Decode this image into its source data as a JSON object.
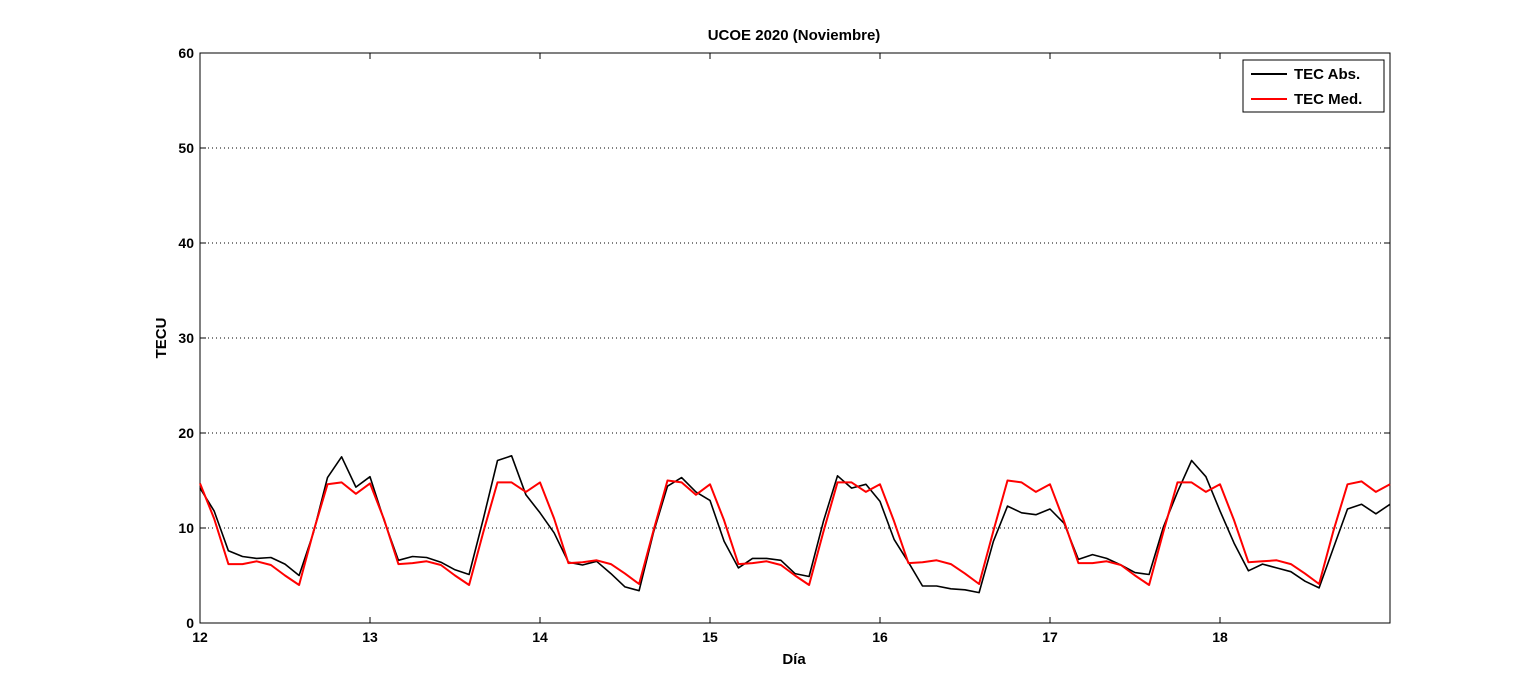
{
  "chart_data": {
    "type": "line",
    "title": "UCOE 2020 (Noviembre)",
    "xlabel": "Día",
    "ylabel": "TECU",
    "xlim": [
      12,
      19
    ],
    "ylim": [
      0,
      60
    ],
    "x_ticks": [
      12,
      13,
      14,
      15,
      16,
      17,
      18
    ],
    "y_ticks": [
      0,
      10,
      20,
      30,
      40,
      50,
      60
    ],
    "grid": "horizontal dotted",
    "legend_position": "top-right",
    "colors": {
      "TEC Abs.": "#000000",
      "TEC Med.": "#ff0000"
    },
    "series": [
      {
        "name": "TEC Abs.",
        "x": [
          12.0,
          12.083,
          12.167,
          12.25,
          12.333,
          12.417,
          12.5,
          12.583,
          12.667,
          12.75,
          12.833,
          12.917,
          13.0,
          13.083,
          13.167,
          13.25,
          13.333,
          13.417,
          13.5,
          13.583,
          13.667,
          13.75,
          13.833,
          13.917,
          14.0,
          14.083,
          14.167,
          14.25,
          14.333,
          14.417,
          14.5,
          14.583,
          14.667,
          14.75,
          14.833,
          14.917,
          15.0,
          15.083,
          15.167,
          15.25,
          15.333,
          15.417,
          15.5,
          15.583,
          15.667,
          15.75,
          15.833,
          15.917,
          16.0,
          16.083,
          16.167,
          16.25,
          16.333,
          16.417,
          16.5,
          16.583,
          16.667,
          16.75,
          16.833,
          16.917,
          17.0,
          17.083,
          17.167,
          17.25,
          17.333,
          17.417,
          17.5,
          17.583,
          17.667,
          17.75,
          17.833,
          17.917,
          18.0,
          18.083,
          18.167,
          18.25,
          18.333,
          18.417,
          18.5,
          18.583,
          18.667,
          18.75,
          18.833,
          18.917,
          19.0
        ],
        "y": [
          14.2,
          11.8,
          7.6,
          7.0,
          6.8,
          6.9,
          6.2,
          5.0,
          9.5,
          15.3,
          17.5,
          14.3,
          15.4,
          10.8,
          6.6,
          7.0,
          6.9,
          6.4,
          5.6,
          5.1,
          11.0,
          17.1,
          17.6,
          13.5,
          11.6,
          9.5,
          6.4,
          6.1,
          6.5,
          5.2,
          3.8,
          3.4,
          9.5,
          14.4,
          15.3,
          13.8,
          12.9,
          8.6,
          5.8,
          6.8,
          6.8,
          6.6,
          5.2,
          4.9,
          10.7,
          15.5,
          14.2,
          14.6,
          12.8,
          8.8,
          6.4,
          3.9,
          3.9,
          3.6,
          3.5,
          3.2,
          8.6,
          12.3,
          11.6,
          11.4,
          12.0,
          10.5,
          6.7,
          7.2,
          6.8,
          6.1,
          5.3,
          5.1,
          10.1,
          13.8,
          17.1,
          15.4,
          11.8,
          8.4,
          5.5,
          6.2,
          5.8,
          5.4,
          4.4,
          3.7,
          7.9,
          12.0,
          12.5,
          11.5,
          12.5
        ]
      },
      {
        "name": "TEC Med.",
        "x": [
          12.0,
          12.083,
          12.167,
          12.25,
          12.333,
          12.417,
          12.5,
          12.583,
          12.667,
          12.75,
          12.833,
          12.917,
          13.0,
          13.083,
          13.167,
          13.25,
          13.333,
          13.417,
          13.5,
          13.583,
          13.667,
          13.75,
          13.833,
          13.917,
          14.0,
          14.083,
          14.167,
          14.25,
          14.333,
          14.417,
          14.5,
          14.583,
          14.667,
          14.75,
          14.833,
          14.917,
          15.0,
          15.083,
          15.167,
          15.25,
          15.333,
          15.417,
          15.5,
          15.583,
          15.667,
          15.75,
          15.833,
          15.917,
          16.0,
          16.083,
          16.167,
          16.25,
          16.333,
          16.417,
          16.5,
          16.583,
          16.667,
          16.75,
          16.833,
          16.917,
          17.0,
          17.083,
          17.167,
          17.25,
          17.333,
          17.417,
          17.5,
          17.583,
          17.667,
          17.75,
          17.833,
          17.917,
          18.0,
          18.083,
          18.167,
          18.25,
          18.333,
          18.417,
          18.5,
          18.583,
          18.667,
          18.75,
          18.833,
          18.917,
          19.0
        ],
        "y": [
          14.7,
          11.0,
          6.2,
          6.2,
          6.5,
          6.1,
          5.0,
          4.0,
          9.6,
          14.6,
          14.8,
          13.6,
          14.7,
          10.9,
          6.2,
          6.3,
          6.5,
          6.1,
          5.0,
          4.0,
          9.6,
          14.8,
          14.8,
          13.8,
          14.8,
          11.0,
          6.3,
          6.4,
          6.6,
          6.2,
          5.2,
          4.1,
          9.7,
          15.0,
          14.8,
          13.5,
          14.6,
          10.8,
          6.2,
          6.3,
          6.5,
          6.1,
          5.0,
          4.0,
          9.6,
          14.8,
          14.8,
          13.8,
          14.6,
          10.7,
          6.3,
          6.4,
          6.6,
          6.2,
          5.2,
          4.1,
          9.7,
          15.0,
          14.8,
          13.8,
          14.6,
          10.7,
          6.3,
          6.3,
          6.5,
          6.1,
          5.0,
          4.0,
          9.6,
          14.8,
          14.8,
          13.8,
          14.6,
          10.8,
          6.4,
          6.5,
          6.6,
          6.2,
          5.2,
          4.1,
          9.7,
          14.6,
          14.9,
          13.8,
          14.6
        ]
      }
    ]
  }
}
